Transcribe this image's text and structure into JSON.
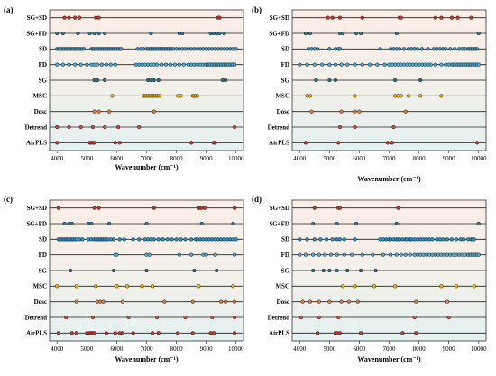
{
  "colors": {
    "bg_top": "#fbeee6",
    "bg_bottom": "#e3f1f1",
    "row_line": "#202020",
    "frame": "#333333",
    "marker_stroke": "#1a1a1a"
  },
  "chart_data": [
    {
      "panel": "(a)",
      "type": "scatter",
      "xlabel": "Wavenumber (cm⁻¹)",
      "xlim": [
        3750,
        10250
      ],
      "xticks": [
        4000,
        5000,
        6000,
        7000,
        8000,
        9000,
        10000
      ],
      "grid": false,
      "series": [
        {
          "name": "SG+SD",
          "color": "#c0392b",
          "x": [
            4250,
            4400,
            4600,
            4750,
            5300,
            5400,
            9400,
            9450
          ]
        },
        {
          "name": "SG+FD",
          "color": "#2f6f8f",
          "x": [
            4000,
            4200,
            4700,
            5100,
            5250,
            5400,
            5600,
            7150,
            8100,
            8200,
            9150,
            9250,
            9350,
            9450,
            9600
          ]
        },
        {
          "name": "SD",
          "color": "#2b8ec2",
          "x": [
            4000,
            4050,
            4100,
            4150,
            4200,
            4250,
            4300,
            4350,
            4400,
            4450,
            4500,
            4550,
            4600,
            4650,
            4700,
            4750,
            4800,
            4850,
            4900,
            5150,
            5200,
            5250,
            5300,
            5350,
            5400,
            5450,
            5500,
            5550,
            5600,
            5650,
            5700,
            5750,
            5800,
            5850,
            5900,
            5950,
            6000,
            6050,
            6100,
            6150,
            6700,
            6800,
            6900,
            7000,
            7050,
            7100,
            7150,
            7200,
            7250,
            7300,
            7350,
            7400,
            7450,
            7500,
            7550,
            7600,
            7650,
            7700,
            7750,
            7800,
            7850,
            7900,
            8000,
            8100,
            8200,
            8300,
            8400,
            8500,
            8600,
            8700,
            8800,
            8900,
            9000,
            9100,
            9200,
            9300,
            9400,
            9500,
            9600,
            9700,
            9800,
            9900,
            10000
          ]
        },
        {
          "name": "FD",
          "color": "#4aa8d8",
          "x": [
            4000,
            4200,
            4400,
            4600,
            4800,
            5000,
            5150,
            5250,
            5350,
            5500,
            5650,
            5800,
            5950,
            6650,
            6750,
            6850,
            6950,
            7050,
            7150,
            7250,
            7350,
            7500,
            7650,
            7800,
            7950,
            8100,
            8250,
            8400,
            8500,
            8600,
            8700,
            8800,
            8900,
            9000,
            9050,
            9100,
            9150,
            9200,
            9250,
            9300,
            9350,
            9400,
            9450,
            9500,
            9550,
            9600,
            9650,
            9700,
            9750,
            9800,
            9850,
            9900,
            9950
          ]
        },
        {
          "name": "SG",
          "color": "#2b6f7f",
          "x": [
            5250,
            5350,
            5600,
            7050,
            7150,
            7250,
            7400,
            9550,
            9650
          ]
        },
        {
          "name": "MSC",
          "color": "#f4b400",
          "x": [
            5850,
            6900,
            6950,
            7000,
            7050,
            7100,
            7150,
            7200,
            7250,
            7300,
            7350,
            7400,
            7450,
            8050,
            8150,
            8550,
            8600,
            8650,
            8700
          ]
        },
        {
          "name": "Dosc",
          "color": "#e07b39",
          "x": [
            5250,
            5400,
            5750,
            7250
          ]
        },
        {
          "name": "Detrend",
          "color": "#d24a3a",
          "x": [
            4000,
            4400,
            4800,
            5200,
            5600,
            6050,
            6750,
            9950
          ]
        },
        {
          "name": "AirPLS",
          "color": "#c0392b",
          "x": [
            4000,
            5100,
            5150,
            5200,
            5250,
            5950,
            6100,
            8500,
            9250,
            9300
          ]
        }
      ]
    },
    {
      "panel": "(b)",
      "type": "scatter",
      "xlabel": "Wavenumber (cm⁻¹)",
      "xlim": [
        3750,
        10250
      ],
      "xticks": [
        4000,
        5000,
        6000,
        7000,
        8000,
        9000,
        10000
      ],
      "grid": false,
      "series": [
        {
          "name": "SG+SD",
          "color": "#c0392b",
          "x": [
            4950,
            5100,
            5350,
            6100,
            7350,
            7400,
            8550,
            8750,
            9100,
            9300,
            9750
          ]
        },
        {
          "name": "SG+FD",
          "color": "#2f6f8f",
          "x": [
            4200,
            4350,
            5350,
            5450,
            5900,
            6050,
            7250,
            10000
          ]
        },
        {
          "name": "SD",
          "color": "#2b8ec2",
          "x": [
            4300,
            4400,
            4500,
            4600,
            5000,
            5200,
            5300,
            5350,
            6700,
            7050,
            7150,
            7250,
            7350,
            7500,
            7650,
            7750,
            7850,
            7950,
            8100,
            8300,
            8500,
            8600,
            8700,
            8800,
            8900,
            9050,
            9200,
            9350,
            9450,
            9550,
            9650,
            9700,
            9750,
            9800,
            9850,
            9900,
            9950
          ]
        },
        {
          "name": "FD",
          "color": "#4aa8d8",
          "x": [
            4000,
            4250,
            4500,
            4750,
            5000,
            5200,
            5400,
            5600,
            5850,
            6100,
            6350,
            6600,
            6850,
            7000,
            7100,
            7200,
            7300,
            7400,
            7500,
            7600,
            7700,
            7800,
            7900,
            8000,
            8100,
            8200,
            8300,
            8400,
            8550,
            8750,
            8900,
            9000,
            9100,
            9150,
            9200,
            9250,
            9300,
            9350,
            9400,
            9450,
            9500,
            9550,
            9600,
            9650,
            9700,
            9750,
            9800,
            9850,
            9900,
            9950,
            10000
          ]
        },
        {
          "name": "SG",
          "color": "#2b6f7f",
          "x": [
            4550,
            5000,
            5200,
            7200,
            8050
          ]
        },
        {
          "name": "MSC",
          "color": "#f4b400",
          "x": [
            4250,
            4350,
            5850,
            7200,
            7300,
            7400,
            7650,
            8050,
            8750
          ]
        },
        {
          "name": "Dosc",
          "color": "#e07b39",
          "x": [
            4400,
            5400,
            5850,
            6000,
            7550
          ]
        },
        {
          "name": "Detrend",
          "color": "#d24a3a",
          "x": [
            5350,
            5850,
            7150
          ]
        },
        {
          "name": "AirPLS",
          "color": "#c0392b",
          "x": [
            4200,
            5300,
            6950,
            7100,
            9950
          ]
        }
      ]
    },
    {
      "panel": "(c)",
      "type": "scatter",
      "xlabel": "Wavenumber (cm⁻¹)",
      "xlim": [
        3750,
        10250
      ],
      "xticks": [
        4000,
        5000,
        6000,
        7000,
        8000,
        9000,
        10000
      ],
      "grid": false,
      "series": [
        {
          "name": "SG+SD",
          "color": "#c0392b",
          "x": [
            4050,
            5250,
            5400,
            7250,
            8750,
            8800,
            8850,
            8950,
            9950
          ]
        },
        {
          "name": "SG+FD",
          "color": "#2f6f8f",
          "x": [
            4250,
            4400,
            4500,
            5050,
            5150,
            5750,
            7000,
            8850,
            9900
          ]
        },
        {
          "name": "SD",
          "color": "#2b8ec2",
          "x": [
            4050,
            4100,
            4150,
            4200,
            4250,
            4300,
            4350,
            4400,
            4450,
            4500,
            4550,
            4600,
            4650,
            4750,
            4850,
            5050,
            5150,
            5250,
            5300,
            5350,
            5400,
            5450,
            5500,
            5550,
            5600,
            5650,
            5700,
            5800,
            5900,
            6100,
            6250,
            6550,
            6750,
            6950,
            7050,
            7150,
            7250,
            7400,
            7550,
            7700,
            7850,
            8000,
            8150,
            8300,
            8500,
            8650,
            8700,
            8800,
            8900,
            9000,
            9100,
            9200,
            9300,
            9400,
            9500,
            9600,
            9700,
            9800,
            9900,
            10000
          ]
        },
        {
          "name": "FD",
          "color": "#4aa8d8",
          "x": [
            5950,
            6000,
            7000,
            7100,
            8100,
            8500,
            8900,
            9000,
            9300,
            9950
          ]
        },
        {
          "name": "SG",
          "color": "#2b6f7f",
          "x": [
            4450,
            5900,
            7000,
            8600,
            9350
          ]
        },
        {
          "name": "MSC",
          "color": "#f4b400",
          "x": [
            4000,
            4650,
            5300,
            6000,
            6350,
            6850,
            7200,
            8750,
            9900
          ]
        },
        {
          "name": "Dosc",
          "color": "#e07b39",
          "x": [
            4650,
            5350,
            5450,
            5550,
            6200,
            7600,
            8550,
            9500,
            9650,
            9950
          ]
        },
        {
          "name": "Detrend",
          "color": "#d24a3a",
          "x": [
            4300,
            5200,
            6400,
            7350,
            8300,
            9200,
            9950
          ]
        },
        {
          "name": "AirPLS",
          "color": "#c0392b",
          "x": [
            4050,
            4500,
            4650,
            5000,
            5100,
            5150,
            5200,
            5250,
            5650,
            5950,
            6100,
            6200,
            6550,
            7200,
            7400,
            8050,
            8550,
            9150,
            9250,
            9950
          ]
        }
      ]
    },
    {
      "panel": "(d)",
      "type": "scatter",
      "xlabel": "Wavenumber (cm⁻¹)",
      "xlim": [
        3750,
        10250
      ],
      "xticks": [
        4000,
        5000,
        6000,
        7000,
        8000,
        9000,
        10000
      ],
      "grid": false,
      "series": [
        {
          "name": "SG+SD",
          "color": "#c0392b",
          "x": [
            4500,
            5300,
            5350,
            7300
          ]
        },
        {
          "name": "SG+FD",
          "color": "#2f6f8f",
          "x": [
            4450,
            5250,
            5900,
            7250,
            10000
          ]
        },
        {
          "name": "SD",
          "color": "#2b8ec2",
          "x": [
            4000,
            4250,
            4500,
            4700,
            4900,
            5100,
            5250,
            5350,
            5500,
            5850,
            6700,
            6800,
            6900,
            7000,
            7050,
            7150,
            7250,
            7300,
            7350,
            7450,
            7550,
            7600,
            7700,
            7750,
            7850,
            7950,
            8050,
            8150,
            8250,
            8350,
            8450,
            8600,
            8700,
            8800,
            8950,
            9100,
            9250,
            9400,
            9500,
            9650,
            9750,
            9800,
            9850
          ]
        },
        {
          "name": "FD",
          "color": "#4aa8d8",
          "x": [
            4000,
            4200,
            4450,
            4650,
            4850,
            5050,
            5250,
            5500,
            5750,
            6100,
            6450,
            6800,
            7050,
            7250,
            7400,
            7550,
            7700,
            7850,
            7950,
            8050,
            8150,
            8250,
            8350,
            8450,
            8550,
            8650,
            8750,
            8850,
            8950,
            9050,
            9150,
            9250,
            9350,
            9450,
            9550,
            9650,
            9700,
            9750,
            9800,
            9850,
            9900,
            9950,
            10000
          ]
        },
        {
          "name": "SG",
          "color": "#2b6f7f",
          "x": [
            4450,
            4800,
            5000,
            5250,
            5600,
            6050,
            6550
          ]
        },
        {
          "name": "MSC",
          "color": "#f4b400",
          "x": [
            5450,
            5850,
            6500,
            7200,
            8750,
            9250,
            9850
          ]
        },
        {
          "name": "Dosc",
          "color": "#e07b39",
          "x": [
            4100,
            4350,
            4650,
            5000,
            5400,
            5650,
            5950,
            7900,
            8950
          ]
        },
        {
          "name": "Detrend",
          "color": "#d24a3a",
          "x": [
            4050,
            4650,
            5300,
            7850,
            9000
          ]
        },
        {
          "name": "AirPLS",
          "color": "#c0392b",
          "x": [
            4600,
            5200,
            5250,
            5350,
            6050,
            7450,
            7900
          ]
        }
      ]
    }
  ]
}
